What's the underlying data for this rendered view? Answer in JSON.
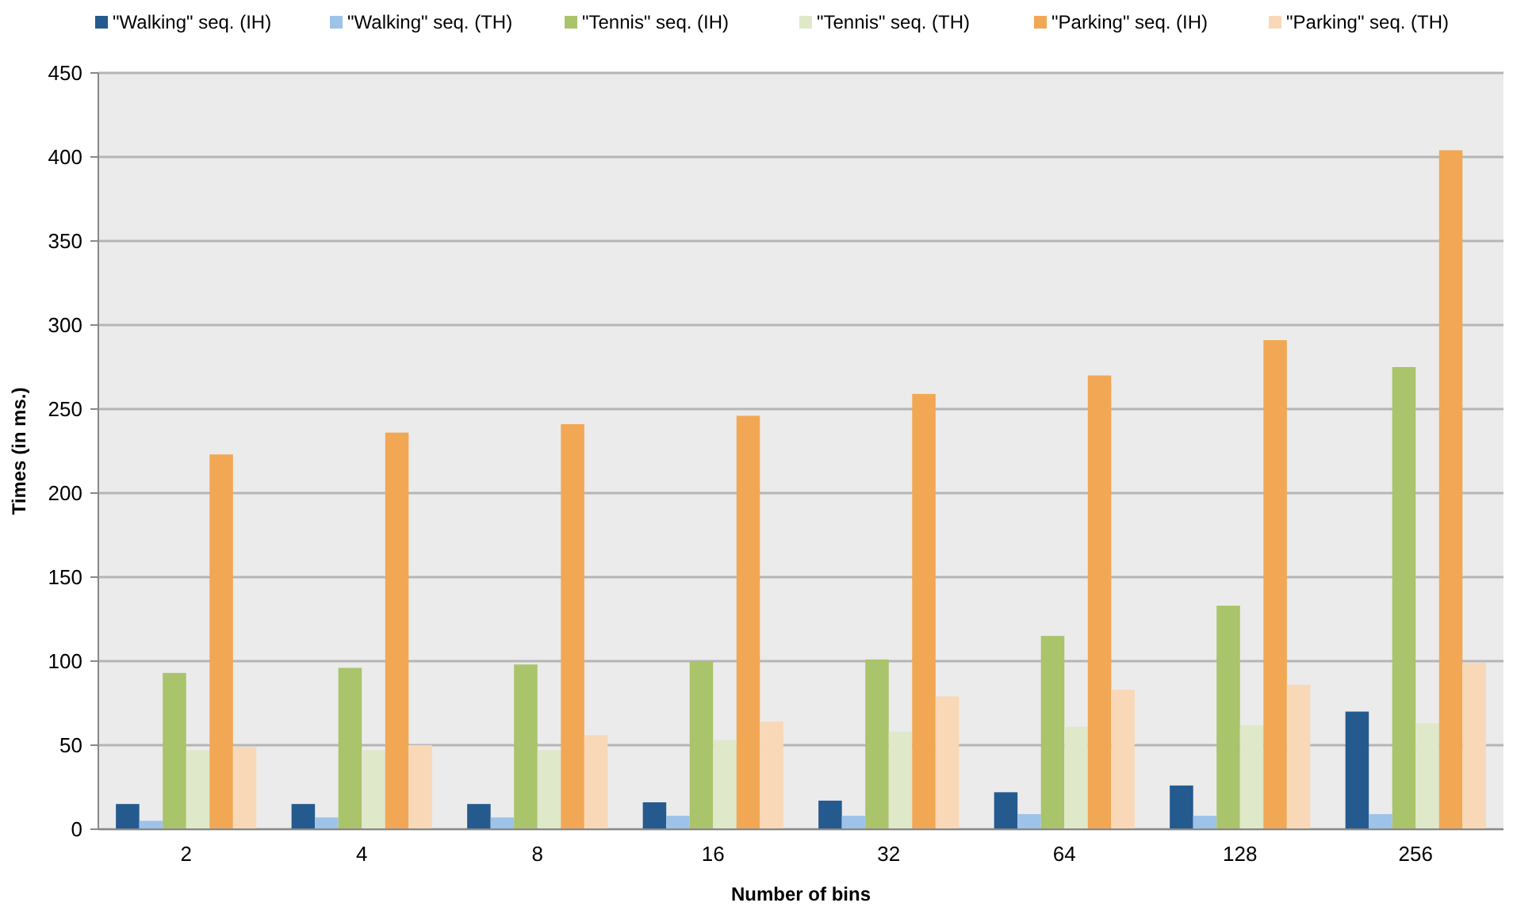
{
  "chart_data": {
    "type": "bar",
    "xlabel": "Number of bins",
    "ylabel": "Times (in ms.)",
    "categories": [
      "2",
      "4",
      "8",
      "16",
      "32",
      "64",
      "128",
      "256"
    ],
    "series": [
      {
        "name": "\"Walking\" seq. (IH)",
        "color": "#255a8f",
        "values": [
          15,
          15,
          15,
          16,
          17,
          22,
          26,
          70
        ]
      },
      {
        "name": "\"Walking\" seq. (TH)",
        "color": "#9dc3e8",
        "values": [
          5,
          7,
          7,
          8,
          8,
          9,
          8,
          9
        ]
      },
      {
        "name": "\"Tennis\" seq. (IH)",
        "color": "#a9c46a",
        "values": [
          93,
          96,
          98,
          100,
          101,
          115,
          133,
          275
        ]
      },
      {
        "name": "\"Tennis\" seq. (TH)",
        "color": "#dfe8c9",
        "values": [
          47,
          47,
          47,
          53,
          58,
          61,
          62,
          63
        ]
      },
      {
        "name": "\"Parking\" seq. (IH)",
        "color": "#f2a755",
        "values": [
          223,
          236,
          241,
          246,
          259,
          270,
          291,
          404
        ]
      },
      {
        "name": "\"Parking\" seq. (TH)",
        "color": "#f9d8b8",
        "values": [
          49,
          50,
          56,
          64,
          79,
          83,
          86,
          99
        ]
      }
    ],
    "ylim": [
      0,
      450
    ],
    "yticks": [
      0,
      50,
      100,
      150,
      200,
      250,
      300,
      350,
      400,
      450
    ],
    "grid": "y",
    "legend": "top"
  }
}
